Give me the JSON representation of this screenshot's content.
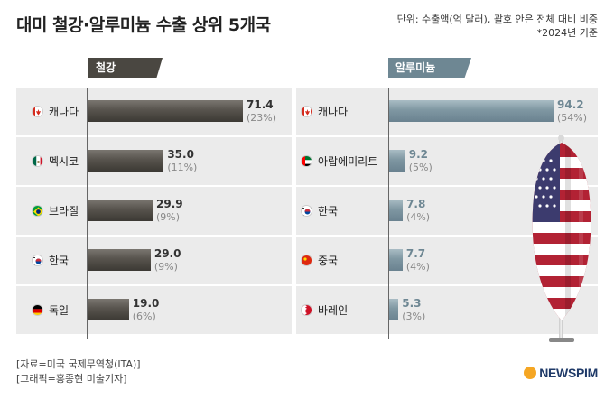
{
  "title": "대미 철강·알루미늄 수출 상위 5개국",
  "unit_note": "단위: 수출액(억 달러), 괄호 안은 전체 대비 비중",
  "base_note": "*2024년 기준",
  "source": "[자료=미국 국제무역청(ITA)]",
  "graphic": "[그래픽=홍종현 미술기자]",
  "logo": "NEWSPIM",
  "colors": {
    "steel": "#4a4741",
    "aluminum": "#6e8793"
  },
  "chart_data": [
    {
      "type": "bar",
      "title": "철강",
      "categories": [
        "캐나다",
        "멕시코",
        "브라질",
        "한국",
        "독일"
      ],
      "values": [
        71.4,
        35.0,
        29.9,
        29.0,
        19.0
      ],
      "value_labels": [
        "71.4",
        "35.0",
        "29.9",
        "29.0",
        "19.0"
      ],
      "shares": [
        "(23%)",
        "(11%)",
        "(9%)",
        "(9%)",
        "(6%)"
      ],
      "flags": [
        "canada-flag-icon",
        "mexico-flag-icon",
        "brazil-flag-icon",
        "korea-flag-icon",
        "germany-flag-icon"
      ]
    },
    {
      "type": "bar",
      "title": "알루미늄",
      "categories": [
        "캐나다",
        "아랍에미리트",
        "한국",
        "중국",
        "바레인"
      ],
      "values": [
        94.2,
        9.2,
        7.8,
        7.7,
        5.3
      ],
      "value_labels": [
        "94.2",
        "9.2",
        "7.8",
        "7.7",
        "5.3"
      ],
      "shares": [
        "(54%)",
        "(5%)",
        "(4%)",
        "(4%)",
        "(3%)"
      ],
      "flags": [
        "canada-flag-icon",
        "uae-flag-icon",
        "korea-flag-icon",
        "china-flag-icon",
        "bahrain-flag-icon"
      ]
    }
  ]
}
